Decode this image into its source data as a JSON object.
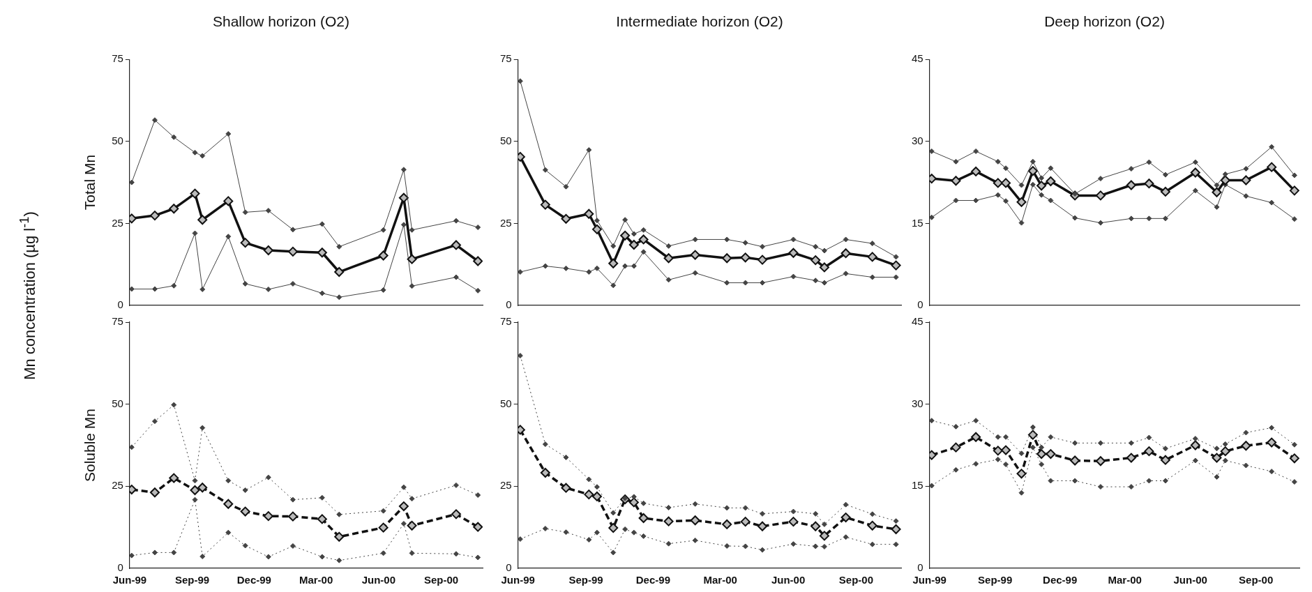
{
  "chart_data": [
    {
      "type": "line",
      "title": "Shallow horizon (O2)",
      "ylabel": "Total Mn",
      "annotations": [
        "Mn concentration (µg l$^{-1}$)"
      ],
      "marker": "diamond",
      "tick_labels": "y",
      "x": [
        "1999-06-04",
        "1999-07-08",
        "1999-08-05",
        "1999-09-05",
        "1999-09-16",
        "1999-10-24",
        "1999-11-18",
        "1999-12-22",
        "2000-01-27",
        "2000-03-10",
        "2000-04-04",
        "2000-06-08",
        "2000-07-08",
        "2000-07-20",
        "2000-09-23",
        "2000-10-25"
      ],
      "xlim": [
        "1999-06-01",
        "2000-11-01"
      ],
      "ylim": [
        0,
        75
      ],
      "yticks": [
        0,
        25,
        50,
        75
      ],
      "series": [
        {
          "color": "#444444",
          "line_style": "solid",
          "values": [
            37.5,
            56.5,
            51.3,
            46.6,
            45.6,
            52.3,
            28.4,
            28.9,
            23.1,
            24.8,
            17.9,
            23.0,
            41.4,
            23.0,
            25.8,
            23.8
          ]
        },
        {
          "color": "#111111",
          "line_style": "solid",
          "values": [
            26.5,
            27.4,
            29.5,
            34.1,
            26.1,
            31.8,
            19.1,
            16.8,
            16.4,
            16.1,
            10.2,
            15.2,
            32.8,
            14.1,
            18.4,
            13.5
          ]
        },
        {
          "color": "#444444",
          "line_style": "solid",
          "values": [
            5.0,
            5.0,
            6.0,
            22.0,
            4.9,
            21.0,
            6.6,
            4.9,
            6.6,
            3.7,
            2.5,
            4.7,
            24.6,
            5.9,
            8.6,
            4.5
          ]
        }
      ]
    },
    {
      "type": "line",
      "title": "Intermediate horizon (O2)",
      "marker": "diamond",
      "tick_labels": "y",
      "x": [
        "1999-06-04",
        "1999-07-08",
        "1999-08-05",
        "1999-09-05",
        "1999-09-16",
        "1999-10-08",
        "1999-10-24",
        "1999-11-05",
        "1999-11-18",
        "1999-12-22",
        "2000-01-27",
        "2000-03-10",
        "2000-04-04",
        "2000-04-27",
        "2000-06-08",
        "2000-07-08",
        "2000-07-20",
        "2000-08-18",
        "2000-09-23",
        "2000-10-25"
      ],
      "xlim": [
        "1999-06-01",
        "2000-11-01"
      ],
      "ylim": [
        0,
        75
      ],
      "yticks": [
        0,
        25,
        50,
        75
      ],
      "series": [
        {
          "color": "#444444",
          "line_style": "solid",
          "values": [
            68.4,
            41.3,
            36.2,
            47.4,
            25.9,
            18.1,
            26.1,
            21.8,
            23.0,
            18.1,
            20.1,
            20.1,
            19.1,
            17.9,
            20.1,
            17.9,
            16.7,
            20.1,
            18.9,
            14.8
          ]
        },
        {
          "color": "#111111",
          "line_style": "solid",
          "values": [
            45.3,
            30.7,
            26.4,
            27.9,
            23.2,
            12.8,
            21.3,
            18.5,
            20.1,
            14.4,
            15.4,
            14.4,
            14.6,
            13.9,
            16.0,
            13.8,
            11.6,
            15.9,
            14.8,
            12.2
          ]
        },
        {
          "color": "#444444",
          "line_style": "solid",
          "values": [
            10.2,
            12.0,
            11.3,
            10.2,
            11.3,
            6.1,
            12.0,
            12.0,
            16.3,
            7.8,
            9.9,
            6.9,
            6.9,
            6.9,
            8.8,
            7.6,
            6.9,
            9.7,
            8.6,
            8.6
          ]
        }
      ]
    },
    {
      "type": "line",
      "title": "Deep horizon (O2)",
      "marker": "diamond",
      "tick_labels": "y",
      "x": [
        "1999-06-04",
        "1999-07-08",
        "1999-08-05",
        "1999-09-05",
        "1999-09-16",
        "1999-10-08",
        "1999-10-24",
        "1999-11-05",
        "1999-11-18",
        "1999-12-22",
        "2000-01-27",
        "2000-03-10",
        "2000-04-04",
        "2000-04-27",
        "2000-06-08",
        "2000-07-08",
        "2000-07-20",
        "2000-08-18",
        "2000-09-23",
        "2000-10-25"
      ],
      "xlim": [
        "1999-06-01",
        "2000-11-01"
      ],
      "ylim": [
        0,
        45
      ],
      "yticks": [
        0,
        15,
        30,
        45
      ],
      "series": [
        {
          "color": "#444444",
          "line_style": "solid",
          "values": [
            28.2,
            26.3,
            28.2,
            26.3,
            25.1,
            22.0,
            26.3,
            23.3,
            25.1,
            20.4,
            23.2,
            25.0,
            26.2,
            23.9,
            26.2,
            22.0,
            24.0,
            25.0,
            29.0,
            23.8
          ]
        },
        {
          "color": "#111111",
          "line_style": "solid",
          "values": [
            23.2,
            22.8,
            24.5,
            22.4,
            22.4,
            18.9,
            24.6,
            21.9,
            22.7,
            20.1,
            20.1,
            22.0,
            22.3,
            20.8,
            24.3,
            20.7,
            22.9,
            22.9,
            25.3,
            21.0
          ]
        },
        {
          "color": "#444444",
          "line_style": "solid",
          "values": [
            16.1,
            19.2,
            19.2,
            20.2,
            19.1,
            15.1,
            22.1,
            20.2,
            19.2,
            16.0,
            15.1,
            15.9,
            15.9,
            15.9,
            21.0,
            18.0,
            22.1,
            20.0,
            18.8,
            15.8
          ]
        }
      ]
    },
    {
      "type": "line",
      "ylabel": "Soluble Mn",
      "marker": "diamond",
      "x": [
        "1999-06-04",
        "1999-07-08",
        "1999-08-05",
        "1999-09-05",
        "1999-09-16",
        "1999-10-24",
        "1999-11-18",
        "1999-12-22",
        "2000-01-27",
        "2000-03-10",
        "2000-04-04",
        "2000-06-08",
        "2000-07-08",
        "2000-07-20",
        "2000-09-23",
        "2000-10-25"
      ],
      "xlim": [
        "1999-06-01",
        "2000-11-01"
      ],
      "xticks": [
        {
          "value": "1999-06-01",
          "label": "Jun-99"
        },
        {
          "value": "1999-09-01",
          "label": "Sep-99"
        },
        {
          "value": "1999-12-01",
          "label": "Dec-99"
        },
        {
          "value": "2000-03-01",
          "label": "Mar-00"
        },
        {
          "value": "2000-06-01",
          "label": "Jun-00"
        },
        {
          "value": "2000-09-01",
          "label": "Sep-00"
        }
      ],
      "ylim": [
        0,
        75
      ],
      "yticks": [
        0,
        25,
        50,
        75
      ],
      "series": [
        {
          "color": "#444444",
          "line_style": "dotted",
          "values": [
            36.9,
            44.8,
            49.8,
            26.7,
            42.8,
            26.7,
            23.8,
            27.7,
            20.9,
            21.5,
            16.4,
            17.5,
            24.7,
            21.2,
            25.3,
            22.3
          ]
        },
        {
          "color": "#111111",
          "line_style": "dashed",
          "values": [
            24.0,
            23.1,
            27.5,
            23.8,
            24.6,
            19.6,
            17.3,
            15.9,
            15.8,
            15.0,
            9.6,
            12.4,
            18.9,
            13.0,
            16.5,
            12.6
          ]
        },
        {
          "color": "#444444",
          "line_style": "dotted",
          "values": [
            3.9,
            4.8,
            4.8,
            20.9,
            3.6,
            10.9,
            6.9,
            3.5,
            6.8,
            3.5,
            2.4,
            4.6,
            13.6,
            4.6,
            4.4,
            3.3
          ]
        }
      ]
    },
    {
      "type": "line",
      "marker": "diamond",
      "x": [
        "1999-06-04",
        "1999-07-08",
        "1999-08-05",
        "1999-09-05",
        "1999-09-16",
        "1999-10-08",
        "1999-10-24",
        "1999-11-05",
        "1999-11-18",
        "1999-12-22",
        "2000-01-27",
        "2000-03-10",
        "2000-04-04",
        "2000-04-27",
        "2000-06-08",
        "2000-07-08",
        "2000-07-20",
        "2000-08-18",
        "2000-09-23",
        "2000-10-25"
      ],
      "xlim": [
        "1999-06-01",
        "2000-11-01"
      ],
      "xticks": [
        {
          "value": "1999-06-01",
          "label": "Jun-99"
        },
        {
          "value": "1999-09-01",
          "label": "Sep-99"
        },
        {
          "value": "1999-12-01",
          "label": "Dec-99"
        },
        {
          "value": "2000-03-01",
          "label": "Mar-00"
        },
        {
          "value": "2000-06-01",
          "label": "Jun-00"
        },
        {
          "value": "2000-09-01",
          "label": "Sep-00"
        }
      ],
      "ylim": [
        0,
        75
      ],
      "yticks": [
        0,
        25,
        50,
        75
      ],
      "series": [
        {
          "color": "#444444",
          "line_style": "dotted",
          "values": [
            64.8,
            37.8,
            33.8,
            27.1,
            24.8,
            16.9,
            21.3,
            21.8,
            19.8,
            18.5,
            19.6,
            18.4,
            18.4,
            16.6,
            17.3,
            16.6,
            13.4,
            19.4,
            16.5,
            14.4
          ]
        },
        {
          "color": "#111111",
          "line_style": "dashed",
          "values": [
            42.2,
            29.1,
            24.5,
            22.5,
            21.9,
            12.3,
            21.0,
            20.1,
            15.3,
            14.3,
            14.6,
            13.4,
            14.2,
            12.8,
            14.2,
            12.8,
            9.9,
            15.5,
            13.0,
            11.9
          ]
        },
        {
          "color": "#444444",
          "line_style": "dotted",
          "values": [
            8.9,
            12.1,
            11.0,
            8.7,
            10.9,
            4.8,
            11.9,
            10.9,
            9.8,
            7.5,
            8.5,
            6.8,
            6.7,
            5.6,
            7.4,
            6.7,
            6.6,
            9.5,
            7.3,
            7.3
          ]
        }
      ]
    },
    {
      "type": "line",
      "marker": "diamond",
      "x": [
        "1999-06-04",
        "1999-07-08",
        "1999-08-05",
        "1999-09-05",
        "1999-09-16",
        "1999-10-08",
        "1999-10-24",
        "1999-11-05",
        "1999-11-18",
        "1999-12-22",
        "2000-01-27",
        "2000-03-10",
        "2000-04-04",
        "2000-04-27",
        "2000-06-08",
        "2000-07-08",
        "2000-07-20",
        "2000-08-18",
        "2000-09-23",
        "2000-10-25"
      ],
      "xlim": [
        "1999-06-01",
        "2000-11-01"
      ],
      "xticks": [
        {
          "value": "1999-06-01",
          "label": "Jun-99"
        },
        {
          "value": "1999-09-01",
          "label": "Sep-99"
        },
        {
          "value": "1999-12-01",
          "label": "Dec-99"
        },
        {
          "value": "2000-03-01",
          "label": "Mar-00"
        },
        {
          "value": "2000-06-01",
          "label": "Jun-00"
        },
        {
          "value": "2000-09-01",
          "label": "Sep-00"
        }
      ],
      "ylim": [
        0,
        45
      ],
      "yticks": [
        0,
        15,
        30,
        45
      ],
      "series": [
        {
          "color": "#444444",
          "line_style": "dotted",
          "values": [
            27.0,
            25.9,
            27.0,
            24.0,
            24.0,
            21.0,
            25.8,
            22.1,
            24.0,
            22.9,
            22.9,
            22.9,
            23.9,
            21.9,
            23.7,
            21.9,
            22.7,
            24.8,
            25.7,
            22.6
          ]
        },
        {
          "color": "#111111",
          "line_style": "dashed",
          "values": [
            20.7,
            22.1,
            24.0,
            21.5,
            21.6,
            17.3,
            24.4,
            20.9,
            20.9,
            19.7,
            19.6,
            20.2,
            21.4,
            19.8,
            22.5,
            20.2,
            21.4,
            22.4,
            23.0,
            20.1
          ]
        },
        {
          "color": "#444444",
          "line_style": "dotted",
          "values": [
            15.1,
            18.0,
            19.1,
            19.9,
            19.0,
            13.8,
            22.1,
            19.0,
            16.0,
            16.0,
            14.9,
            14.9,
            16.0,
            16.0,
            19.7,
            16.7,
            19.7,
            18.8,
            17.7,
            15.8
          ]
        }
      ]
    }
  ]
}
